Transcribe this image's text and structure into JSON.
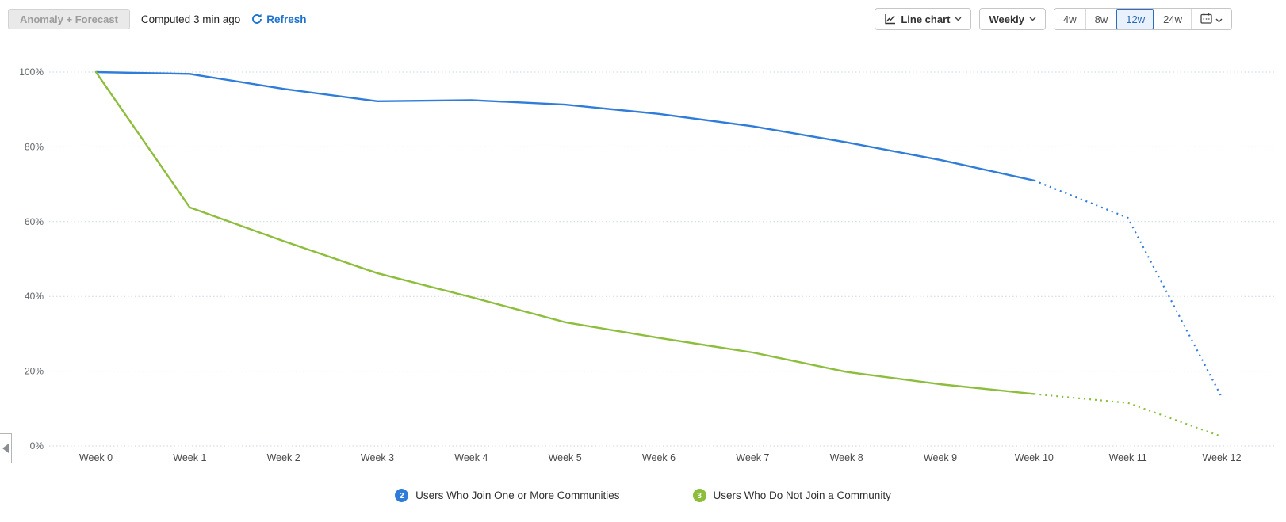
{
  "toolbar": {
    "anomaly_forecast_label": "Anomaly + Forecast",
    "computed_status": "Computed 3 min ago",
    "refresh_label": "Refresh"
  },
  "controls": {
    "chart_type_label": "Line chart",
    "interval_label": "Weekly",
    "ranges": [
      {
        "label": "4w",
        "selected": false
      },
      {
        "label": "8w",
        "selected": false
      },
      {
        "label": "12w",
        "selected": true
      },
      {
        "label": "24w",
        "selected": false
      }
    ],
    "date_picker_icon": "calendar-icon"
  },
  "colors": {
    "accent_blue": "#1d72cf",
    "selected_range_bg": "#e9f2fc",
    "selected_range_border": "#2e6cc0",
    "grid": "#c9d5df"
  },
  "chart_data": {
    "type": "line",
    "unit": "%",
    "x_labels": [
      "Week 0",
      "Week 1",
      "Week 2",
      "Week 3",
      "Week 4",
      "Week 5",
      "Week 6",
      "Week 7",
      "Week 8",
      "Week 9",
      "Week 10",
      "Week 11",
      "Week 12"
    ],
    "y_ticks": [
      0,
      20,
      40,
      60,
      80,
      100
    ],
    "y_tick_suffix": "%",
    "ylim": [
      0,
      100
    ],
    "grid": "horizontal-dotted",
    "legend_position": "bottom-center",
    "forecast_style": "dotted",
    "series": [
      {
        "name": "Users Who Join One or More Communities",
        "badge": "2",
        "color": "#2f7dd9",
        "actual": [
          100,
          99.5,
          95.5,
          92.2,
          92.5,
          91.3,
          88.8,
          85.5,
          81.2,
          76.5,
          71.0
        ],
        "forecast": [
          61.0,
          13.0
        ]
      },
      {
        "name": "Users Who Do Not Join a Community",
        "badge": "3",
        "color": "#8cbd3b",
        "actual": [
          100,
          63.8,
          54.8,
          46.2,
          39.8,
          33.1,
          28.9,
          25.0,
          19.8,
          16.5,
          13.9
        ],
        "forecast": [
          11.5,
          2.5
        ]
      }
    ]
  }
}
